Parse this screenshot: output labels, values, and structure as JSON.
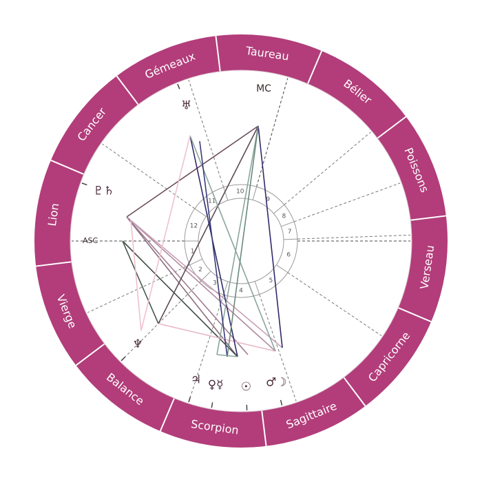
{
  "colors": {
    "ring": "#b23d7a",
    "ring_divider": "#ffffff",
    "dashed": "#777777",
    "inner_circle": "#999999",
    "glyph": "#4a2a3a"
  },
  "signs": [
    {
      "name": "Taureau",
      "angle": 82
    },
    {
      "name": "Bélier",
      "angle": 52
    },
    {
      "name": "Poissons",
      "angle": 22
    },
    {
      "name": "Verseau",
      "angle": -8
    },
    {
      "name": "Capricorne",
      "angle": -38
    },
    {
      "name": "Sagittaire",
      "angle": -68
    },
    {
      "name": "Scorpion",
      "angle": -98
    },
    {
      "name": "Balance",
      "angle": -128
    },
    {
      "name": "Vierge",
      "angle": -158
    },
    {
      "name": "Lion",
      "angle": 172
    },
    {
      "name": "Cancer",
      "angle": 142
    },
    {
      "name": "Gémeaux",
      "angle": 112
    }
  ],
  "axes": {
    "asc_label": "ASC",
    "mc_label": "MC"
  },
  "house_cusp_angles": [
    180,
    205,
    225,
    252,
    289,
    326,
    2,
    20,
    40,
    74,
    108,
    145
  ],
  "house_numbers": [
    {
      "n": "1",
      "angle": 192
    },
    {
      "n": "2",
      "angle": 215
    },
    {
      "n": "3",
      "angle": 238
    },
    {
      "n": "4",
      "angle": 270
    },
    {
      "n": "5",
      "angle": 307
    },
    {
      "n": "6",
      "angle": 344
    },
    {
      "n": "7",
      "angle": 11
    },
    {
      "n": "8",
      "angle": 30
    },
    {
      "n": "9",
      "angle": 57
    },
    {
      "n": "10",
      "angle": 91
    },
    {
      "n": "11",
      "angle": 126
    },
    {
      "n": "12",
      "angle": 162
    }
  ],
  "planets": [
    {
      "name": "uranus",
      "glyph": "♅",
      "angle": 112
    },
    {
      "name": "pluto-saturn",
      "glyph": "♇♄",
      "angle": 160
    },
    {
      "name": "neptune",
      "glyph": "♆",
      "angle": 225
    },
    {
      "name": "jupiter",
      "glyph": "♃",
      "angle": 252
    },
    {
      "name": "venus-mercury",
      "glyph": "♀☿",
      "angle": 260
    },
    {
      "name": "sun",
      "glyph": "☉",
      "angle": 272
    },
    {
      "name": "mars-moon",
      "glyph": "♂☽",
      "angle": 284
    }
  ],
  "aspects": [
    {
      "p1": [
        184,
        315
      ],
      "p2": [
        375,
        183
      ],
      "color": "#6a4a5a"
    },
    {
      "p1": [
        184,
        315
      ],
      "p2": [
        400,
        510
      ],
      "color": "#b08ba0"
    },
    {
      "p1": [
        184,
        315
      ],
      "p2": [
        410,
        505
      ],
      "color": "#c9a0b5"
    },
    {
      "p1": [
        184,
        315
      ],
      "p2": [
        345,
        518
      ],
      "color": "#8a6a7a"
    },
    {
      "p1": [
        184,
        315
      ],
      "p2": [
        360,
        515
      ],
      "color": "#a07a90"
    },
    {
      "p1": [
        178,
        350
      ],
      "p2": [
        345,
        518
      ],
      "color": "#3d4a40"
    },
    {
      "p1": [
        178,
        350
      ],
      "p2": [
        230,
        470
      ],
      "color": "#4a5a4e"
    },
    {
      "p1": [
        230,
        470
      ],
      "p2": [
        375,
        183
      ],
      "color": "#5a4a55"
    },
    {
      "p1": [
        230,
        470
      ],
      "p2": [
        400,
        510
      ],
      "color": "#e8b8c8"
    },
    {
      "p1": [
        276,
        197
      ],
      "p2": [
        345,
        518
      ],
      "color": "#2d2a6a"
    },
    {
      "p1": [
        276,
        197
      ],
      "p2": [
        400,
        510
      ],
      "color": "#8aa59a"
    },
    {
      "p1": [
        276,
        197
      ],
      "p2": [
        205,
        480
      ],
      "color": "#f0c0d0"
    },
    {
      "p1": [
        375,
        183
      ],
      "p2": [
        315,
        515
      ],
      "color": "#8aa59a"
    },
    {
      "p1": [
        375,
        183
      ],
      "p2": [
        410,
        505
      ],
      "color": "#2d2a6a"
    },
    {
      "p1": [
        375,
        183
      ],
      "p2": [
        330,
        518
      ],
      "color": "#6a8a7a"
    },
    {
      "p1": [
        290,
        205
      ],
      "p2": [
        330,
        518
      ],
      "color": "#3a3a7a"
    },
    {
      "p1": [
        315,
        515
      ],
      "p2": [
        345,
        518
      ],
      "color": "#8aa59a"
    },
    {
      "p1": [
        190,
        320
      ],
      "p2": [
        205,
        480
      ],
      "color": "#f0c0d0"
    }
  ]
}
